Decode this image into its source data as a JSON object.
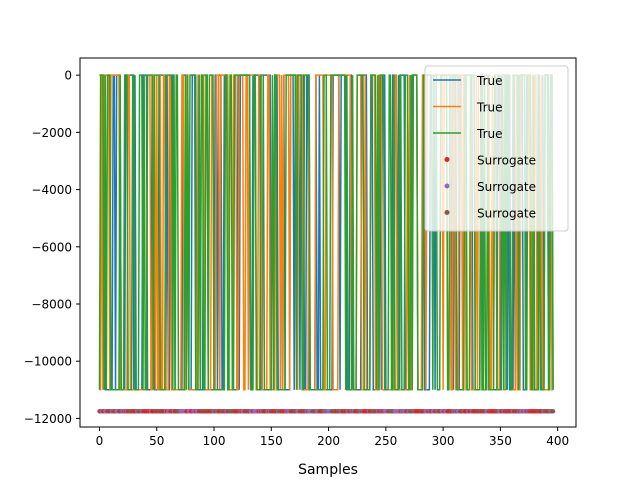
{
  "chart_data": {
    "type": "line",
    "title": "",
    "xlabel": "Samples",
    "ylabel": "",
    "xlim": [
      -17,
      416
    ],
    "ylim": [
      -12300,
      600
    ],
    "xticks": [
      0,
      50,
      100,
      150,
      200,
      250,
      300,
      350,
      400
    ],
    "yticks": [
      0,
      -2000,
      -4000,
      -6000,
      -8000,
      -10000,
      -12000
    ],
    "grid": false,
    "legend_position": "top-right",
    "n_samples": 397,
    "series": [
      {
        "name": "True",
        "kind": "line",
        "color": "#1f77b4",
        "low": -11000,
        "high": 0
      },
      {
        "name": "True",
        "kind": "line",
        "color": "#ff7f0e",
        "low": -11000,
        "high": 0
      },
      {
        "name": "True",
        "kind": "line",
        "color": "#2ca02c",
        "low": -11000,
        "high": 0
      },
      {
        "name": "Surrogate",
        "kind": "scatter",
        "color": "#d62728",
        "value": -11750
      },
      {
        "name": "Surrogate",
        "kind": "scatter",
        "color": "#9467bd",
        "value": -11750
      },
      {
        "name": "Surrogate",
        "kind": "scatter",
        "color": "#8c564b",
        "value": -11750
      }
    ]
  }
}
